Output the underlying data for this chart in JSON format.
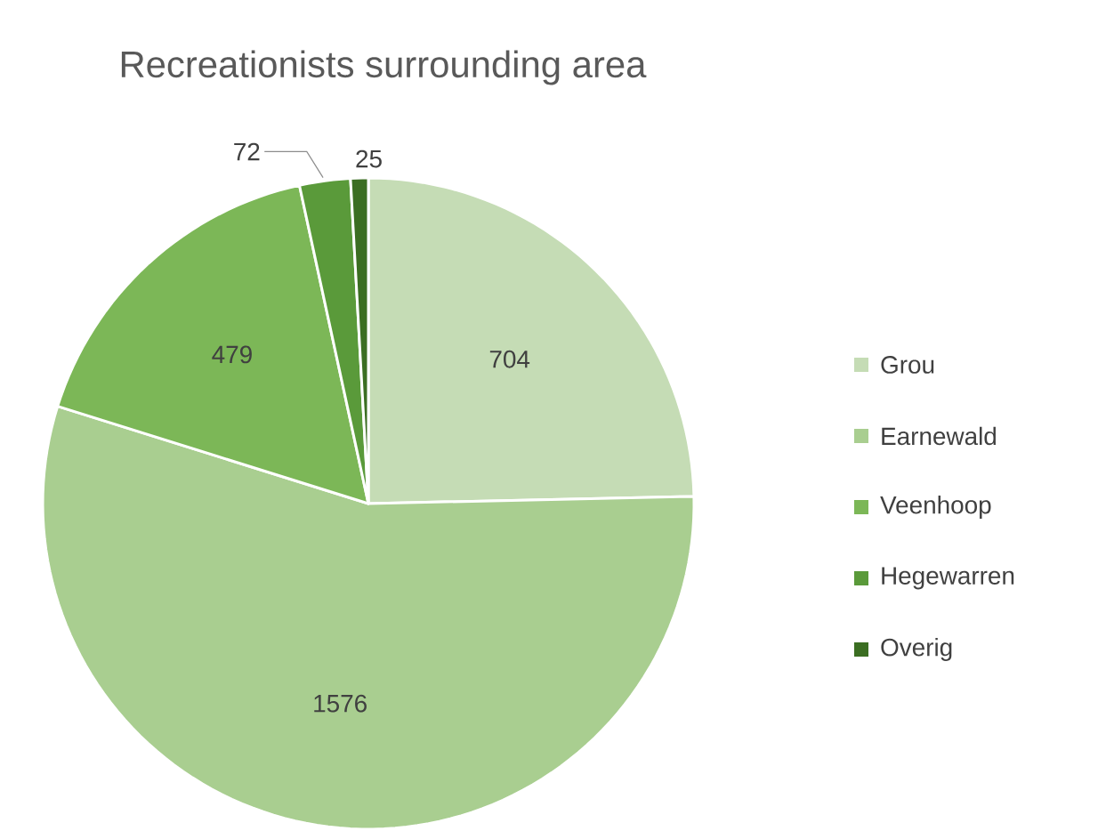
{
  "chart_data": {
    "type": "pie",
    "title": "Recreationists surrounding area",
    "categories": [
      "Grou",
      "Earnewald",
      "Veenhoop",
      "Hegewarren",
      "Overig"
    ],
    "values": [
      704,
      1576,
      479,
      72,
      25
    ],
    "colors": [
      "#c5dcb5",
      "#a9ce90",
      "#7cb757",
      "#5a9a3a",
      "#3b6e22"
    ],
    "data_labels": true,
    "legend": "right"
  }
}
